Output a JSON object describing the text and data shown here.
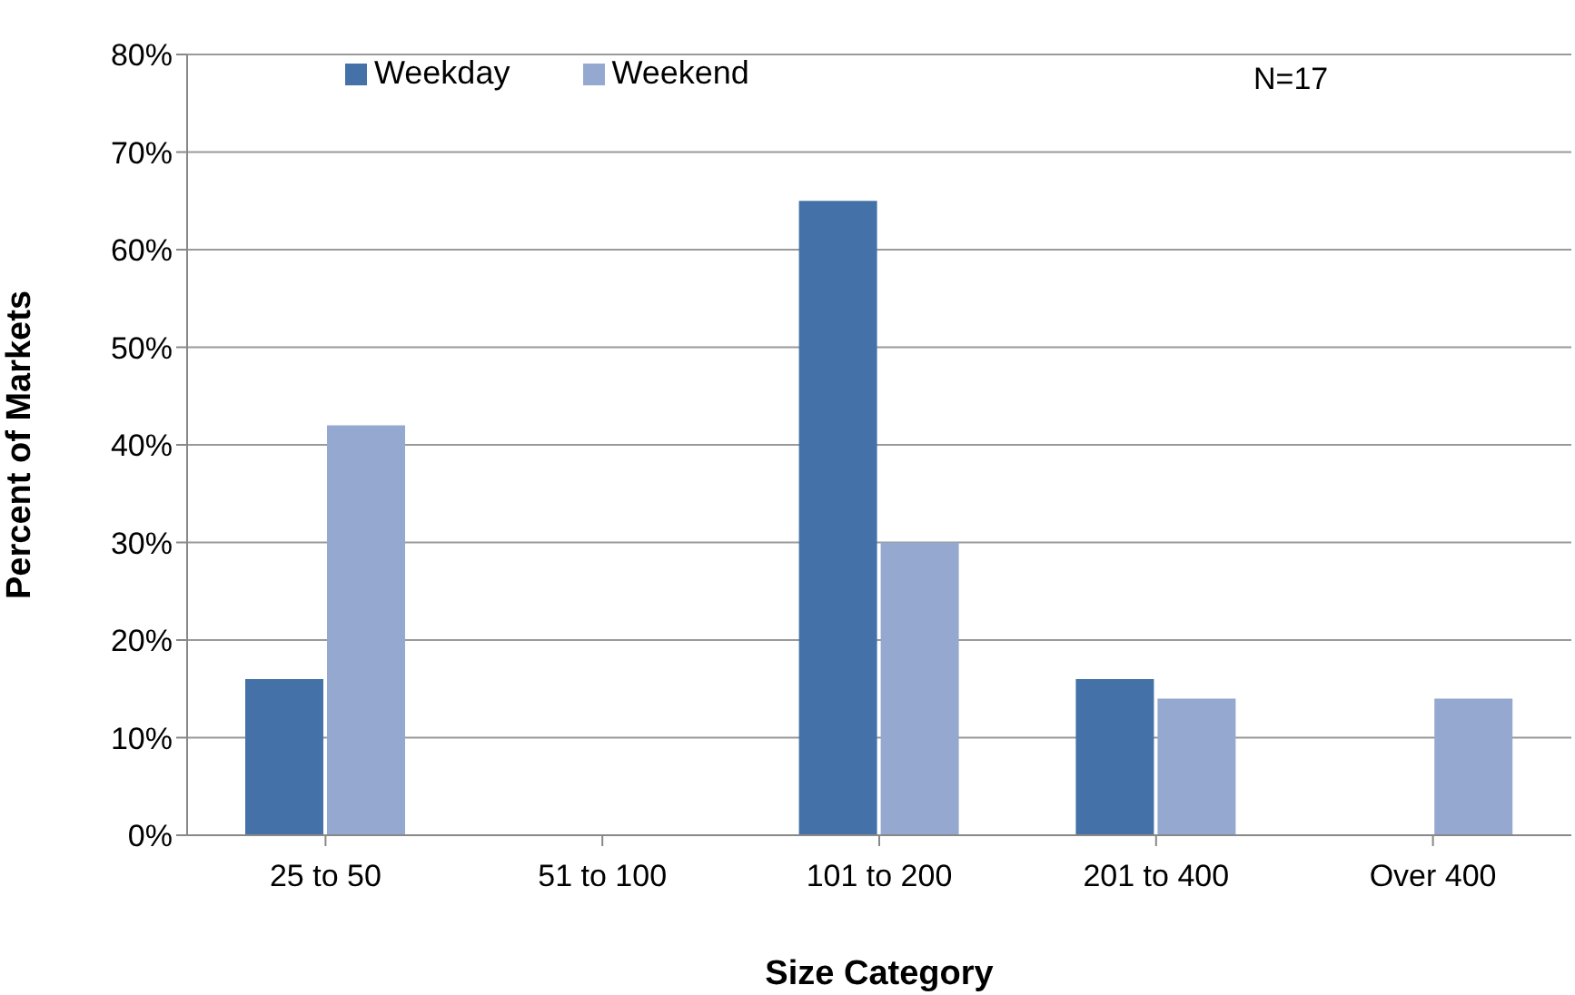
{
  "chart_data": {
    "type": "bar",
    "xlabel": "Size Category",
    "ylabel": "Percent of Markets",
    "categories": [
      "25 to 50",
      "51 to 100",
      "101 to 200",
      "201 to 400",
      "Over 400"
    ],
    "series": [
      {
        "name": "Weekday",
        "color": "#4472a8",
        "values": [
          16,
          0,
          65,
          16,
          0
        ]
      },
      {
        "name": "Weekend",
        "color": "#95a9d0",
        "values": [
          42,
          0,
          30,
          14,
          14
        ]
      }
    ],
    "ylim": [
      0,
      80
    ],
    "yticks": [
      {
        "value": 0,
        "label": "0%"
      },
      {
        "value": 10,
        "label": "10%"
      },
      {
        "value": 20,
        "label": "20%"
      },
      {
        "value": 30,
        "label": "30%"
      },
      {
        "value": 40,
        "label": "40%"
      },
      {
        "value": 50,
        "label": "50%"
      },
      {
        "value": 60,
        "label": "60%"
      },
      {
        "value": 70,
        "label": "70%"
      },
      {
        "value": 80,
        "label": "80%"
      }
    ],
    "grid": "y",
    "legend": "top left",
    "annotations": [
      "N=17"
    ]
  }
}
